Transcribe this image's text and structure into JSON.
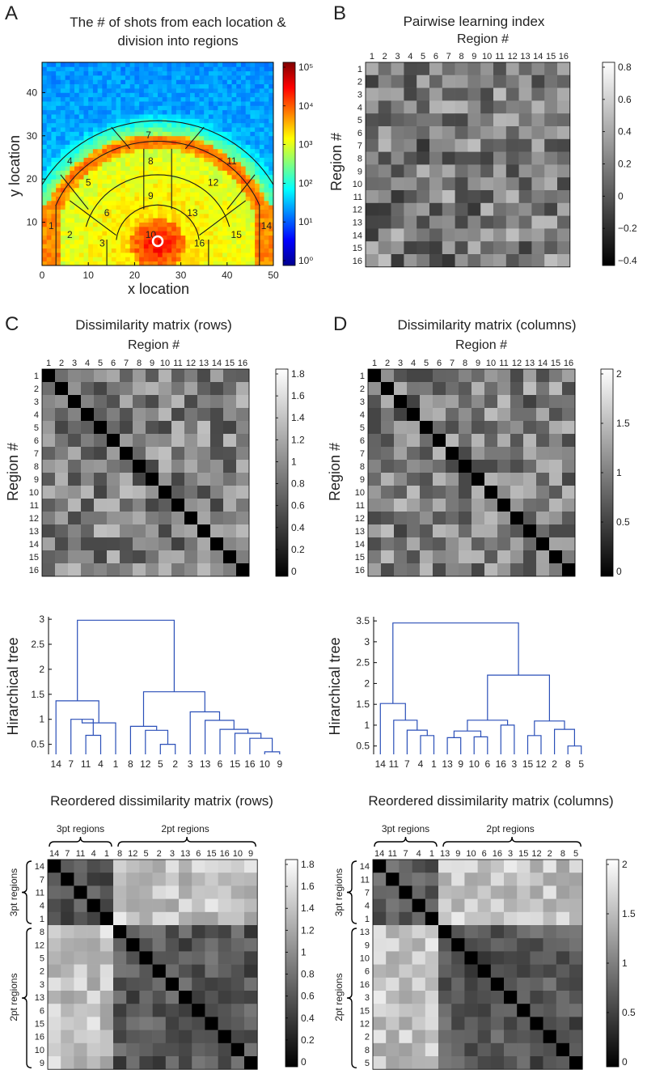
{
  "panels": {
    "A": {
      "letter": "A",
      "title_line1": "The # of shots from each location &",
      "title_line2": "division into regions",
      "xlabel": "x location",
      "ylabel": "y location",
      "xticks": [
        "0",
        "10",
        "20",
        "30",
        "40",
        "50"
      ],
      "yticks": [
        "10",
        "20",
        "30",
        "40"
      ],
      "cbar_ticks": [
        "10⁵",
        "10⁴",
        "10³",
        "10²",
        "10¹",
        "10⁰"
      ],
      "region_labels": [
        "1",
        "2",
        "3",
        "4",
        "5",
        "6",
        "7",
        "8",
        "9",
        "10",
        "11",
        "12",
        "13",
        "14",
        "15",
        "16"
      ]
    },
    "B": {
      "letter": "B",
      "title": "Pairwise learning index",
      "top_label": "Region #",
      "ylabel": "Region #",
      "cbar_ticks": [
        "0.8",
        "0.6",
        "0.4",
        "0.2",
        "0",
        "−0.2",
        "−0.4"
      ]
    },
    "C": {
      "letter": "C",
      "title": "Dissimilarity matrix (rows)",
      "top_label": "Region #",
      "ylabel": "Region #",
      "cbar_ticks": [
        "1.8",
        "1.6",
        "1.4",
        "1.2",
        "1",
        "0.8",
        "0.6",
        "0.4",
        "0.2",
        "0"
      ],
      "tree_ylabel": "Hirarchical tree",
      "tree_yticks": [
        "3",
        "2.5",
        "2",
        "1.5",
        "1",
        "0.5"
      ],
      "reordered_title": "Reordered dissimilarity matrix (rows)",
      "group_3pt": "3pt regions",
      "group_2pt": "2pt regions"
    },
    "D": {
      "letter": "D",
      "title": "Dissimilarity matrix (columns)",
      "top_label": "Region #",
      "ylabel": "Region #",
      "cbar_ticks": [
        "2",
        "1.5",
        "1",
        "0.5",
        "0"
      ],
      "tree_ylabel": "Hirarchical tree",
      "tree_yticks": [
        "3.5",
        "3",
        "2.5",
        "2",
        "1.5",
        "1",
        "0.5"
      ],
      "reordered_title": "Reordered dissimilarity matrix (columns)",
      "group_3pt": "3pt regions",
      "group_2pt": "2pt regions"
    }
  },
  "chart_data": [
    {
      "id": "A",
      "type": "heatmap",
      "title": "The # of shots from each location & division into regions",
      "xlabel": "x location",
      "ylabel": "y location",
      "xlim": [
        0,
        50
      ],
      "ylim": [
        0,
        47
      ],
      "colorbar": {
        "scale": "log",
        "range": [
          1,
          100000
        ]
      },
      "regions": 16
    },
    {
      "id": "B",
      "type": "heatmap",
      "title": "Pairwise learning index",
      "xlabel": "Region #",
      "ylabel": "Region #",
      "categories": [
        "1",
        "2",
        "3",
        "4",
        "5",
        "6",
        "7",
        "8",
        "9",
        "10",
        "11",
        "12",
        "13",
        "14",
        "15",
        "16"
      ],
      "colorbar": {
        "range": [
          -0.55,
          0.85
        ]
      }
    },
    {
      "id": "C",
      "type": "heatmap",
      "title": "Dissimilarity matrix (rows)",
      "xlabel": "Region #",
      "ylabel": "Region #",
      "categories": [
        "1",
        "2",
        "3",
        "4",
        "5",
        "6",
        "7",
        "8",
        "9",
        "10",
        "11",
        "12",
        "13",
        "14",
        "15",
        "16"
      ],
      "colorbar": {
        "range": [
          0,
          1.85
        ]
      }
    },
    {
      "id": "D",
      "type": "heatmap",
      "title": "Dissimilarity matrix (columns)",
      "xlabel": "Region #",
      "ylabel": "Region #",
      "categories": [
        "1",
        "2",
        "3",
        "4",
        "5",
        "6",
        "7",
        "8",
        "9",
        "10",
        "11",
        "12",
        "13",
        "14",
        "15",
        "16"
      ],
      "colorbar": {
        "range": [
          0,
          2.2
        ]
      }
    },
    {
      "id": "C-tree",
      "type": "dendrogram",
      "ylabel": "Hirarchical tree",
      "ylim": [
        0.3,
        3.05
      ],
      "leaf_order": [
        "14",
        "7",
        "11",
        "4",
        "1",
        "8",
        "12",
        "5",
        "2",
        "3",
        "13",
        "6",
        "15",
        "16",
        "10",
        "9"
      ],
      "merges": [
        {
          "a": "11",
          "b": "4",
          "height": 0.68
        },
        {
          "a": "10",
          "b": "9",
          "height": 0.35
        },
        {
          "a": "5",
          "b": "2",
          "height": 0.5
        },
        {
          "a": "7",
          "b": "11+4",
          "height": 1.0
        },
        {
          "a": "16",
          "b": "10+9",
          "height": 0.62
        },
        {
          "a": "15",
          "b": "16+10+9",
          "height": 0.72
        },
        {
          "a": "6",
          "b": "15+16+10+9",
          "height": 0.8
        },
        {
          "a": "12",
          "b": "5+2",
          "height": 0.78
        },
        {
          "a": "8",
          "b": "12+5+2",
          "height": 0.86
        },
        {
          "a": "13",
          "b": "6+15+16+10+9",
          "height": 0.98
        },
        {
          "a": "3",
          "b": "13+6+15+16+10+9",
          "height": 1.15
        },
        {
          "a": "7+11+4",
          "b": "1",
          "height": 0.93
        },
        {
          "a": "14",
          "b": "7+11+4+1",
          "height": 1.37
        },
        {
          "a": "8+12+5+2",
          "b": "3+13+6+15+16+10+9",
          "height": 1.55
        },
        {
          "a": "3pt",
          "b": "2pt",
          "height": 2.98
        }
      ]
    },
    {
      "id": "D-tree",
      "type": "dendrogram",
      "ylabel": "Hirarchical tree",
      "ylim": [
        0.3,
        3.6
      ],
      "leaf_order": [
        "14",
        "11",
        "7",
        "4",
        "1",
        "13",
        "9",
        "10",
        "6",
        "16",
        "3",
        "15",
        "12",
        "2",
        "8",
        "5"
      ],
      "merges": [
        {
          "a": "4",
          "b": "1",
          "height": 0.75
        },
        {
          "a": "7",
          "b": "4+1",
          "height": 0.88
        },
        {
          "a": "11",
          "b": "7+4+1",
          "height": 1.12
        },
        {
          "a": "14",
          "b": "11+7+4+1",
          "height": 1.52
        },
        {
          "a": "13",
          "b": "9",
          "height": 0.7
        },
        {
          "a": "10",
          "b": "6",
          "height": 0.72
        },
        {
          "a": "13+9",
          "b": "10+6",
          "height": 0.86
        },
        {
          "a": "16",
          "b": "3",
          "height": 1.0
        },
        {
          "a": "13+9+10+6",
          "b": "16+3",
          "height": 1.12
        },
        {
          "a": "8",
          "b": "5",
          "height": 0.5
        },
        {
          "a": "2",
          "b": "8+5",
          "height": 0.9
        },
        {
          "a": "15",
          "b": "12",
          "height": 0.75
        },
        {
          "a": "15+12",
          "b": "2+8+5",
          "height": 1.1
        },
        {
          "a": "left2pt",
          "b": "right2pt",
          "height": 2.2
        },
        {
          "a": "3pt",
          "b": "2pt",
          "height": 3.45
        }
      ]
    },
    {
      "id": "C-reordered",
      "type": "heatmap",
      "title": "Reordered dissimilarity matrix (rows)",
      "categories": [
        "14",
        "7",
        "11",
        "4",
        "1",
        "8",
        "12",
        "5",
        "2",
        "3",
        "13",
        "6",
        "15",
        "16",
        "10",
        "9"
      ],
      "groups": [
        {
          "name": "3pt regions",
          "size": 5
        },
        {
          "name": "2pt regions",
          "size": 11
        }
      ],
      "colorbar": {
        "range": [
          0,
          1.85
        ]
      }
    },
    {
      "id": "D-reordered",
      "type": "heatmap",
      "title": "Reordered dissimilarity matrix (columns)",
      "categories": [
        "14",
        "11",
        "7",
        "4",
        "1",
        "13",
        "9",
        "10",
        "6",
        "16",
        "3",
        "15",
        "12",
        "2",
        "8",
        "5"
      ],
      "groups": [
        {
          "name": "3pt regions",
          "size": 5
        },
        {
          "name": "2pt regions",
          "size": 11
        }
      ],
      "colorbar": {
        "range": [
          0,
          2.2
        ]
      }
    }
  ]
}
